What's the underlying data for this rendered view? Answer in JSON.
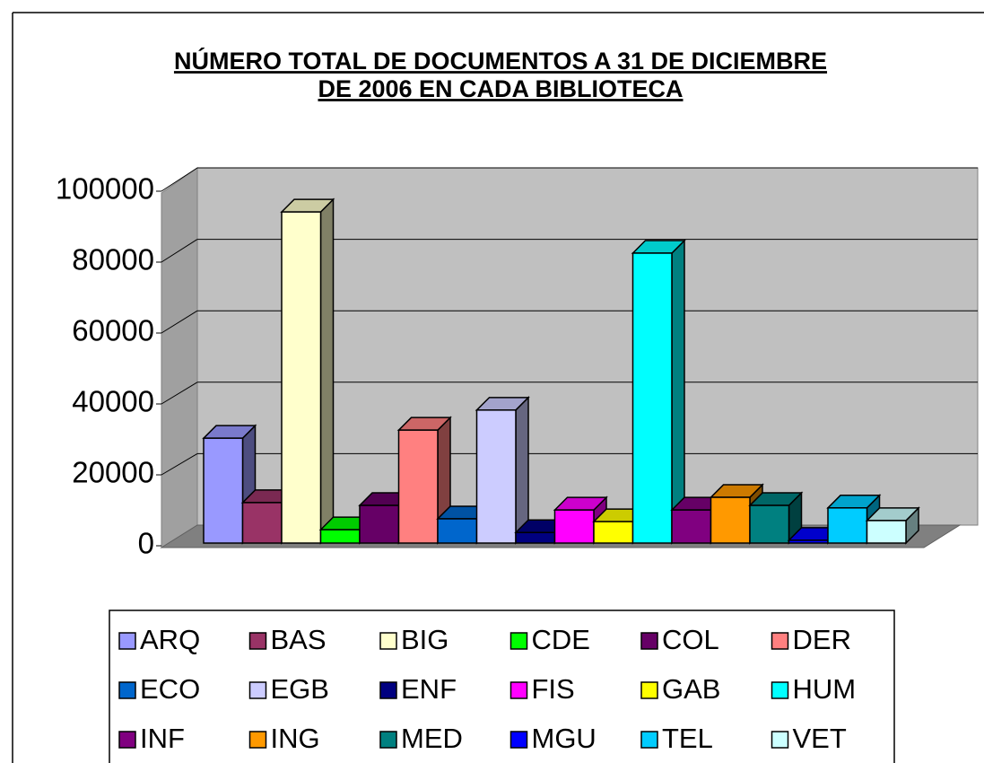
{
  "chart_data": {
    "type": "bar3d",
    "title_lines": [
      "NÚMERO TOTAL DE DOCUMENTOS A 31 DE DICIEMBRE",
      "DE 2006 EN CADA BIBLIOTECA"
    ],
    "ylim": [
      0,
      100000
    ],
    "yticks": [
      0,
      20000,
      40000,
      60000,
      80000,
      100000
    ],
    "grid": true,
    "series": [
      {
        "name": "ARQ",
        "color": "#9999ff",
        "values": [
          29800
        ]
      },
      {
        "name": "BAS",
        "color": "#993366",
        "values": [
          11500
        ]
      },
      {
        "name": "BIG",
        "color": "#ffffcc",
        "values": [
          94100
        ]
      },
      {
        "name": "CDE",
        "color": "#00ff00",
        "values": [
          3800
        ]
      },
      {
        "name": "COL",
        "color": "#660066",
        "values": [
          10700
        ]
      },
      {
        "name": "DER",
        "color": "#ff8080",
        "values": [
          32100
        ]
      },
      {
        "name": "ECO",
        "color": "#0066cc",
        "values": [
          6900
        ]
      },
      {
        "name": "EGB",
        "color": "#ccccff",
        "values": [
          37800
        ]
      },
      {
        "name": "ENF",
        "color": "#000080",
        "values": [
          3000
        ]
      },
      {
        "name": "FIS",
        "color": "#ff00ff",
        "values": [
          9400
        ]
      },
      {
        "name": "GAB",
        "color": "#ffff00",
        "values": [
          6100
        ]
      },
      {
        "name": "HUM",
        "color": "#00ffff",
        "values": [
          82400
        ]
      },
      {
        "name": "INF",
        "color": "#800080",
        "values": [
          9400
        ]
      },
      {
        "name": "ING",
        "color": "#ff9900",
        "values": [
          13000
        ]
      },
      {
        "name": "MED",
        "color": "#008080",
        "values": [
          10700
        ]
      },
      {
        "name": "MGU",
        "color": "#0000ff",
        "values": [
          800
        ]
      },
      {
        "name": "TEL",
        "color": "#00ccff",
        "values": [
          10000
        ]
      },
      {
        "name": "VET",
        "color": "#ccffff",
        "values": [
          6400
        ]
      }
    ]
  }
}
